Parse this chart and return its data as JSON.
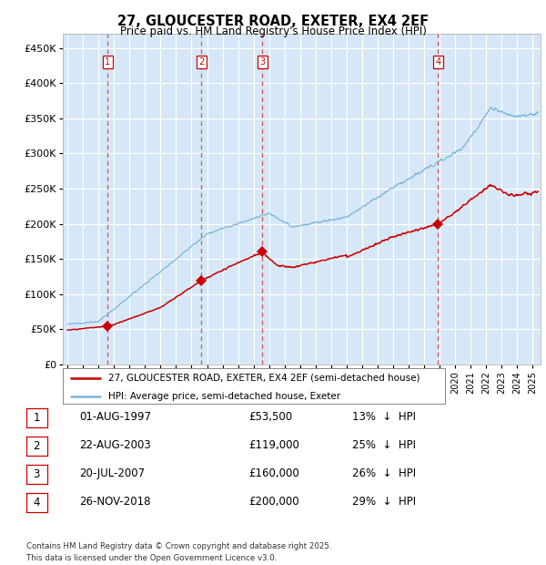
{
  "title": "27, GLOUCESTER ROAD, EXETER, EX4 2EF",
  "subtitle": "Price paid vs. HM Land Registry's House Price Index (HPI)",
  "ylabel_ticks": [
    "£0",
    "£50K",
    "£100K",
    "£150K",
    "£200K",
    "£250K",
    "£300K",
    "£350K",
    "£400K",
    "£450K"
  ],
  "ytick_values": [
    0,
    50000,
    100000,
    150000,
    200000,
    250000,
    300000,
    350000,
    400000,
    450000
  ],
  "ylim": [
    0,
    470000
  ],
  "xlim_start": 1994.7,
  "xlim_end": 2025.5,
  "bg_color": "#d6e8f7",
  "grid_color": "#ffffff",
  "hpi_line_color": "#7ab3d9",
  "price_line_color": "#cc0000",
  "marker_color": "#cc0000",
  "dashed_line_color": "#e05050",
  "transactions": [
    {
      "num": 1,
      "date": "01-AUG-1997",
      "price": 53500,
      "pct": "13%",
      "dir": "↓",
      "x_year": 1997.58
    },
    {
      "num": 2,
      "date": "22-AUG-2003",
      "price": 119000,
      "pct": "25%",
      "dir": "↓",
      "x_year": 2003.64
    },
    {
      "num": 3,
      "date": "20-JUL-2007",
      "price": 160000,
      "pct": "26%",
      "dir": "↓",
      "x_year": 2007.55
    },
    {
      "num": 4,
      "date": "26-NOV-2018",
      "price": 200000,
      "pct": "29%",
      "dir": "↓",
      "x_year": 2018.9
    }
  ],
  "footer": "Contains HM Land Registry data © Crown copyright and database right 2025.\nThis data is licensed under the Open Government Licence v3.0.",
  "legend_line1": "27, GLOUCESTER ROAD, EXETER, EX4 2EF (semi-detached house)",
  "legend_line2": "HPI: Average price, semi-detached house, Exeter"
}
